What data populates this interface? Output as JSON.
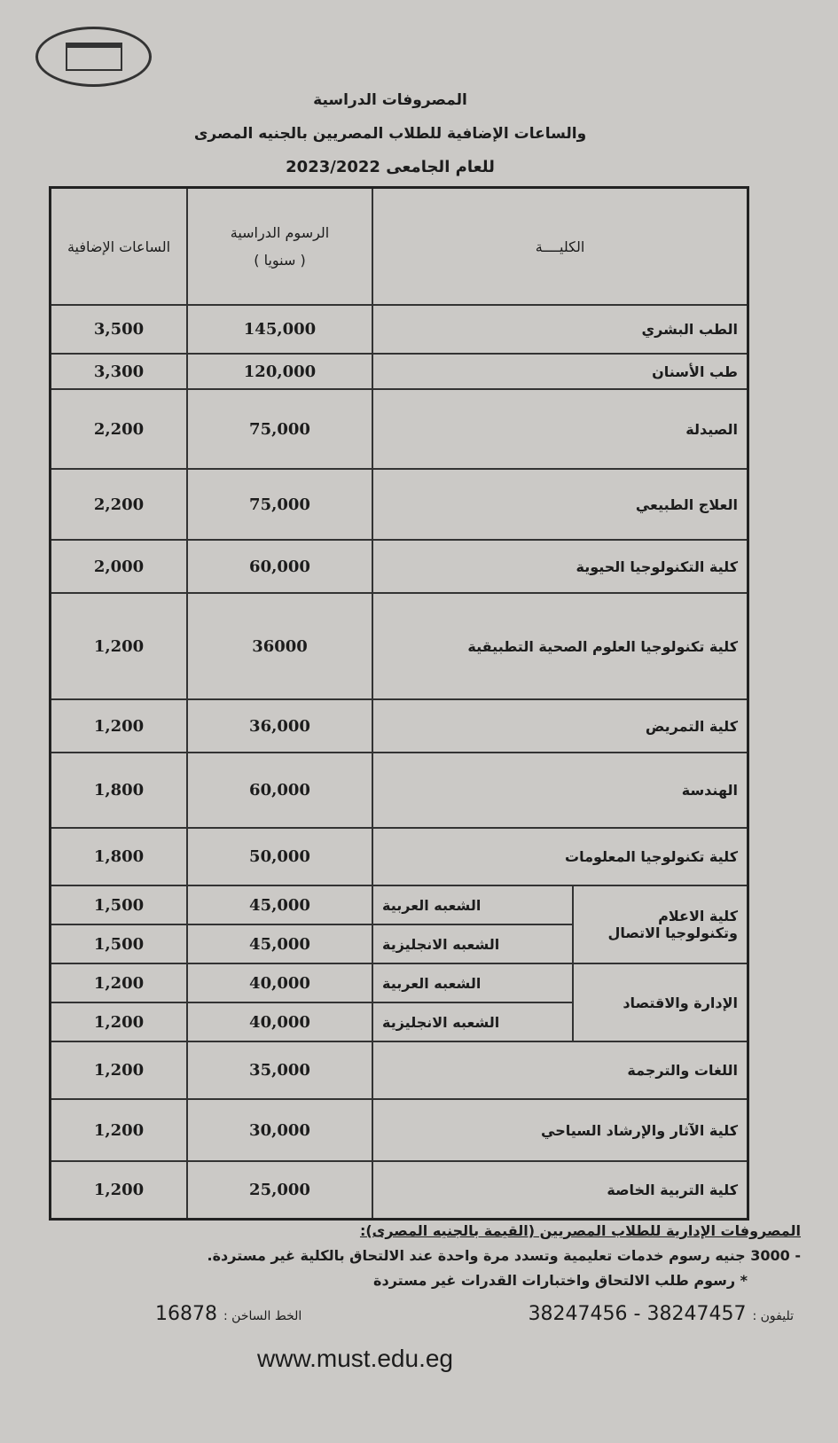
{
  "header": {
    "line1": "المصروفات الدراسية",
    "line2": "والساعات الإضافية للطلاب المصريين بالجنيه المصرى",
    "line3": "للعام الجامعى 2023/2022"
  },
  "table": {
    "col_faculty": "الكليــــة",
    "col_fees": "الرسوم الدراسية",
    "col_fees_sub": "( سنويا )",
    "col_hours": "الساعات الإضافية",
    "rows": [
      {
        "faculty": "الطب البشري",
        "fees": "145,000",
        "hours": "3,500"
      },
      {
        "faculty": "طب الأسنان",
        "fees": "120,000",
        "hours": "3,300"
      },
      {
        "faculty": "الصيدلة",
        "fees": "75,000",
        "hours": "2,200"
      },
      {
        "faculty": "العلاج الطبيعي",
        "fees": "75,000",
        "hours": "2,200"
      },
      {
        "faculty": "كلية التكنولوجيا الحيوية",
        "fees": "60,000",
        "hours": "2,000"
      },
      {
        "faculty": "كلية  تكنولوجيا العلوم الصحية التطبيقية",
        "fees": "36000",
        "hours": "1,200"
      },
      {
        "faculty": "كلية التمريض",
        "fees": "36,000",
        "hours": "1,200"
      },
      {
        "faculty": "الهندسة",
        "fees": "60,000",
        "hours": "1,800"
      },
      {
        "faculty": "كلية تكنولوجيا المعلومات",
        "fees": "50,000",
        "hours": "1,800"
      }
    ],
    "split_groups": [
      {
        "faculty": "كلية الاعلام وتكنولوجيا الاتصال",
        "sections": [
          {
            "section": "الشعبه العربية",
            "fees": "45,000",
            "hours": "1,500"
          },
          {
            "section": "الشعبه الانجليزية",
            "fees": "45,000",
            "hours": "1,500"
          }
        ]
      },
      {
        "faculty": "الإدارة  والاقتصاد",
        "sections": [
          {
            "section": "الشعبه العربية",
            "fees": "40,000",
            "hours": "1,200"
          },
          {
            "section": "الشعبه الانجليزية",
            "fees": "40,000",
            "hours": "1,200"
          }
        ]
      }
    ],
    "rows_after": [
      {
        "faculty": "اللغات والترجمة",
        "fees": "35,000",
        "hours": "1,200"
      },
      {
        "faculty": "كلية الآثار والإرشاد السياحي",
        "fees": "30,000",
        "hours": "1,200"
      },
      {
        "faculty": "كلية التربية الخاصة",
        "fees": "25,000",
        "hours": "1,200"
      }
    ]
  },
  "notes": {
    "heading": "المصروفات الإدارية للطلاب المصريين (القيمة بالجنيه المصرى):",
    "item1": "- 3000 جنيه رسوم خدمات تعليمية وتسدد مرة واحدة عند الالتحاق بالكلية غير مستردة.",
    "item2": "* رسوم طلب الالتحاق واختبارات القدرات غير مستردة"
  },
  "contact": {
    "phone_label": "تليفون :",
    "phone": "38247457 - 38247456",
    "hotline_label": "الخط الساخن :",
    "hotline": "16878",
    "website": "www.must.edu.eg"
  }
}
